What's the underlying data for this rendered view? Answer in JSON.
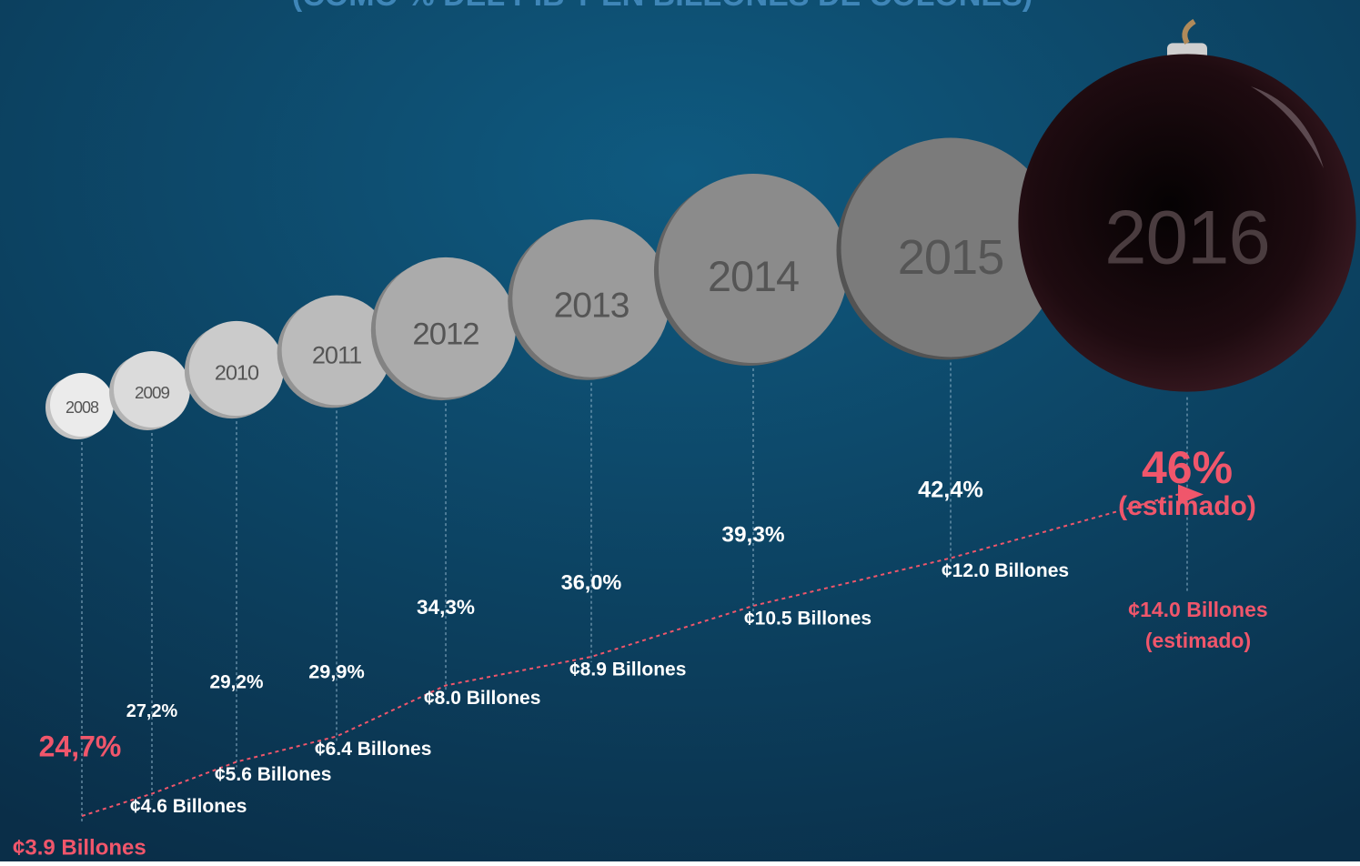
{
  "chart_data": {
    "type": "bubble",
    "title": "(COMO % DEL PIB Y EN  BILLONES DE COLONES)",
    "categories": [
      "2008",
      "2009",
      "2010",
      "2011",
      "2012",
      "2013",
      "2014",
      "2015",
      "2016"
    ],
    "values": [
      24.7,
      27.2,
      29.2,
      29.9,
      34.3,
      36.0,
      39.3,
      42.4,
      46
    ],
    "value_labels": [
      "24,7%",
      "27,2%",
      "29,2%",
      "29,9%",
      "34,3%",
      "36,0%",
      "39,3%",
      "42,4%",
      "46%"
    ],
    "amounts": [
      3.9,
      4.6,
      5.6,
      6.4,
      8.0,
      8.9,
      10.5,
      12.0,
      14.0
    ],
    "amount_labels": [
      "¢3.9 Billones",
      "¢4.6 Billones",
      "¢5.6 Billones",
      "¢6.4 Billones",
      "¢8.0 Billones",
      "¢8.9 Billones",
      "¢10.5 Billones",
      "¢12.0 Billones",
      "¢14.0 Billones"
    ],
    "estimate_label": "(estimado)",
    "highlight_color": "#f0566b",
    "label_color": "#ffffff"
  }
}
